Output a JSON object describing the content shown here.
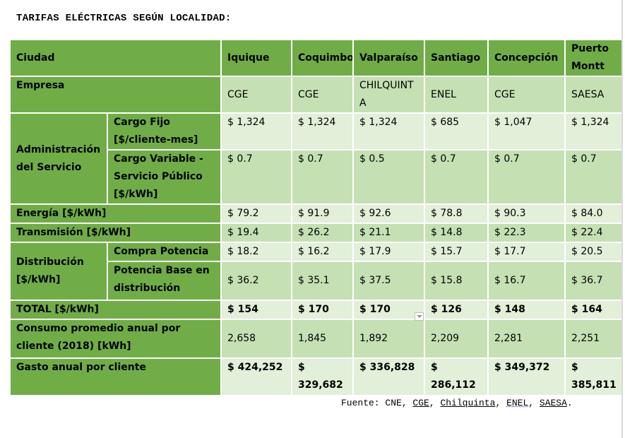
{
  "title": "TARIFAS ELÉCTRICAS SEGÚN LOCALIDAD:",
  "table": {
    "header": {
      "label": "Ciudad",
      "cities": [
        "Iquique",
        "Coquimbo",
        "Valparaíso",
        "Santiago",
        "Concepción",
        "Puerto Montt"
      ]
    },
    "empresa": {
      "label": "Empresa",
      "values": [
        "CGE",
        "CGE",
        "CHILQUINTA",
        "ENEL",
        "CGE",
        "SAESA"
      ]
    },
    "administracion": {
      "label": "Administración del Servicio",
      "cargo_fijo": {
        "label": "Cargo Fijo [$/cliente-mes]",
        "values": [
          "$ 1,324",
          "$ 1,324",
          "$ 1,324",
          "$ 685",
          "$ 1,047",
          "$ 1,324"
        ]
      },
      "cargo_variable": {
        "label": "Cargo Variable - Servicio Público [$/kWh]",
        "values": [
          "$ 0.7",
          "$ 0.7",
          "$ 0.5",
          "$ 0.7",
          "$ 0.7",
          "$ 0.7"
        ]
      }
    },
    "energia": {
      "label": "Energía [$/kWh]",
      "values": [
        "$ 79.2",
        "$ 91.9",
        "$ 92.6",
        "$ 78.8",
        "$ 90.3",
        "$ 84.0"
      ]
    },
    "transmision": {
      "label": "Transmisión [$/kWh]",
      "values": [
        "$ 19.4",
        "$ 26.2",
        "$ 21.1",
        "$ 14.8",
        "$ 22.3",
        "$ 22.4"
      ]
    },
    "distribucion": {
      "label": "Distribución [$/kWh]",
      "compra_potencia": {
        "label": "Compra Potencia",
        "values": [
          "$ 18.2",
          "$ 16.2",
          "$ 17.9",
          "$ 15.7",
          "$ 17.7",
          "$ 20.5"
        ]
      },
      "potencia_base": {
        "label": "Potencia Base en distribución",
        "values": [
          "$ 36.2",
          "$ 35.1",
          "$ 37.5",
          "$ 15.8",
          "$ 16.7",
          "$ 36.7"
        ]
      }
    },
    "total": {
      "label": "TOTAL [$/kWh]",
      "values": [
        "$ 154",
        "$ 170",
        "$ 170",
        "$ 126",
        "$ 148",
        "$ 164"
      ]
    },
    "consumo": {
      "label": "Consumo promedio anual por cliente (2018) [kWh]",
      "values": [
        "2,658",
        "1,845",
        "1,892",
        "2,209",
        "2,281",
        "2,251"
      ]
    },
    "gasto": {
      "label": "Gasto anual por cliente",
      "values": [
        "$ 424,252",
        "$ 329,682",
        "$ 336,828",
        "$ 286,112",
        "$ 349,372",
        "$ 385,811"
      ]
    }
  },
  "fuente": {
    "prefix": "Fuente: CNE, ",
    "cge": "CGE",
    "sep1": ", ",
    "chilquinta": "Chilquinta",
    "sep2": ", ",
    "enel": "ENEL",
    "sep3": ", ",
    "saesa": "SAESA",
    "suffix": "."
  }
}
